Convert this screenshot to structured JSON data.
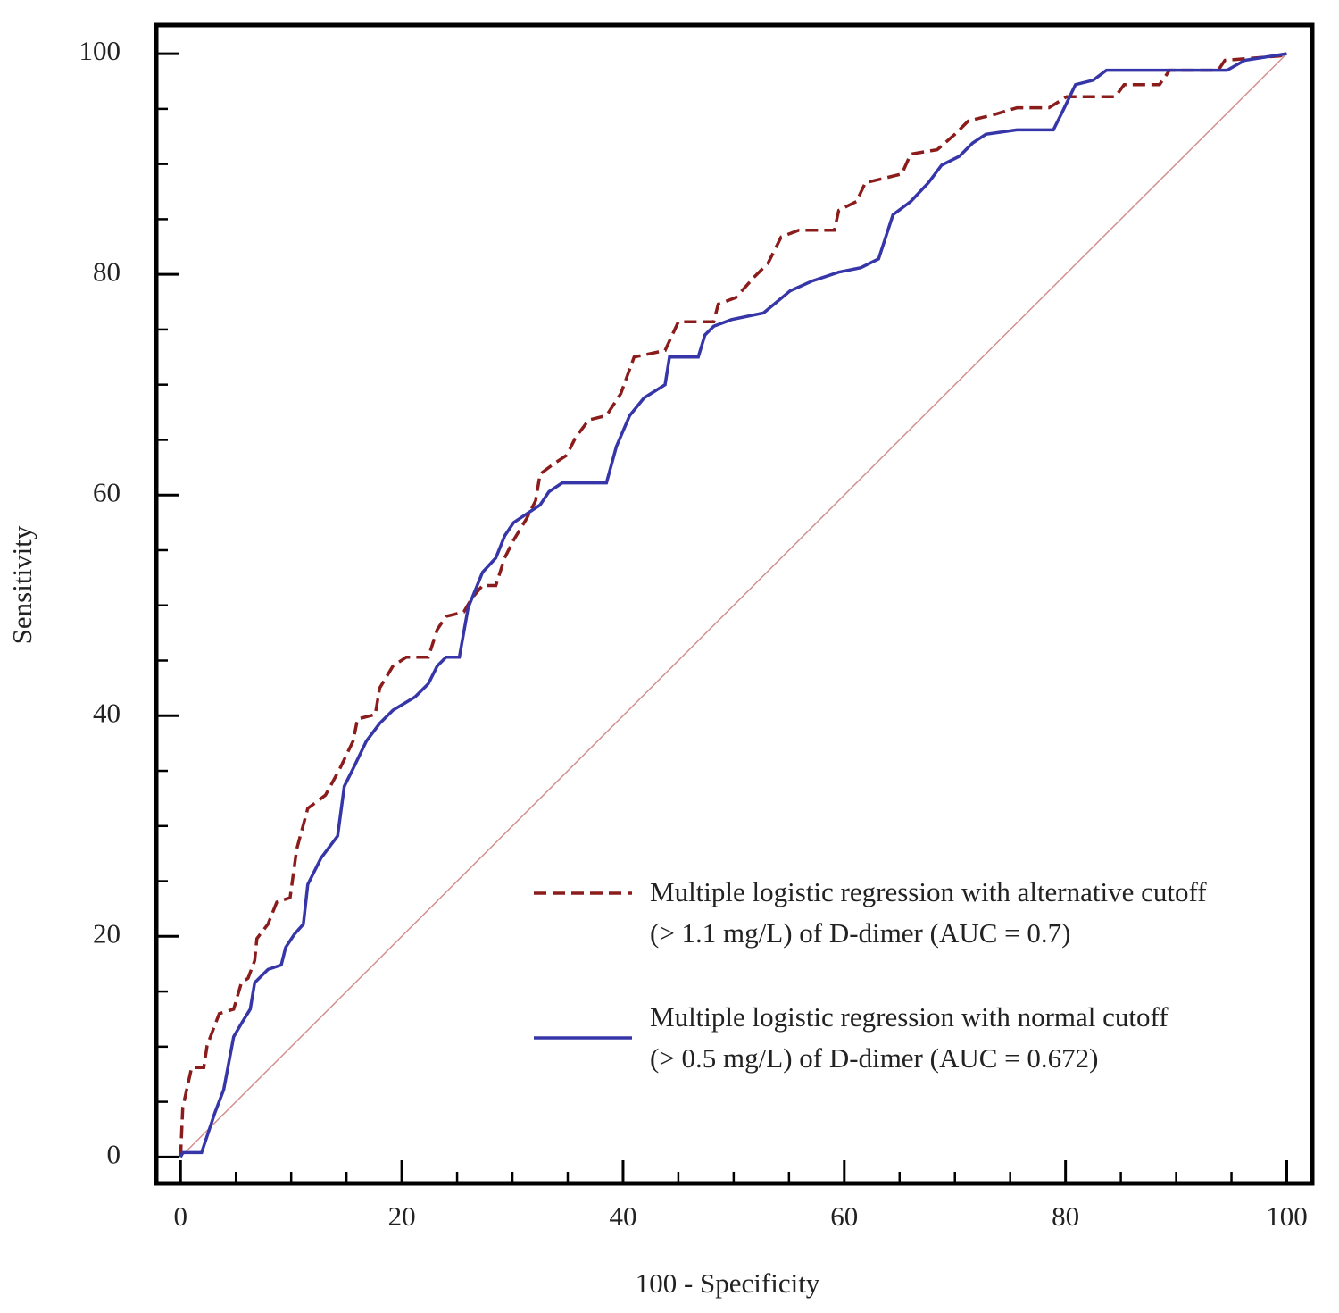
{
  "chart_data": {
    "type": "line",
    "xlabel": "100 - Specificity",
    "ylabel": "Sensitivity",
    "xlim": [
      -2.2,
      102.3
    ],
    "ylim": [
      -2.4,
      102.6
    ],
    "xticks": [
      0,
      20,
      40,
      60,
      80,
      100
    ],
    "yticks": [
      0,
      20,
      40,
      60,
      80,
      100
    ],
    "xticks_minor": [
      5,
      10,
      15,
      25,
      30,
      35,
      45,
      50,
      55,
      65,
      70,
      75,
      85,
      90,
      95
    ],
    "yticks_minor": [
      5,
      10,
      15,
      25,
      30,
      35,
      45,
      50,
      55,
      65,
      70,
      75,
      85,
      90,
      95
    ],
    "legend": "lower right",
    "diagonal": {
      "x": [
        0,
        100
      ],
      "y": [
        0,
        100
      ],
      "color": "#d49090"
    },
    "series": [
      {
        "name": [
          "Multiple logistic regression with alternative cutoff",
          "(> 1.1 mg/L) of D-dimer  (AUC = 0.7)"
        ],
        "color": "#8b1c1c",
        "dash": true,
        "x": [
          0,
          0.2,
          1.0,
          2.1,
          2.4,
          3.5,
          4.8,
          5.5,
          6.1,
          6.7,
          6.9,
          7.9,
          8.7,
          9.9,
          10.5,
          11.5,
          13.1,
          14.4,
          15.6,
          16.0,
          17.6,
          18.0,
          19.2,
          20.4,
          22.4,
          23.2,
          24.0,
          25.6,
          26.3,
          27.3,
          28.5,
          29.3,
          30.1,
          31.3,
          32.1,
          32.5,
          33.7,
          34.9,
          35.7,
          36.9,
          38.5,
          39.8,
          41.0,
          43.8,
          45.0,
          48.2,
          48.6,
          50.2,
          51.9,
          53.1,
          54.3,
          55.9,
          59.1,
          59.5,
          61.1,
          61.9,
          65.2,
          66.0,
          68.4,
          70.0,
          71.2,
          73.6,
          75.6,
          78.5,
          80.1,
          84.5,
          85.3,
          88.5,
          89.4,
          93.8,
          94.4,
          99.4,
          100
        ],
        "values": [
          0,
          4.5,
          8.1,
          8.1,
          10.1,
          13.0,
          13.4,
          15.8,
          16.2,
          17.8,
          19.8,
          21.1,
          23.1,
          23.5,
          27.9,
          31.6,
          32.8,
          35.2,
          37.7,
          39.7,
          40.1,
          42.5,
          44.5,
          45.3,
          45.3,
          47.8,
          49.0,
          49.4,
          50.6,
          51.8,
          51.8,
          54.3,
          55.9,
          57.9,
          59.5,
          61.9,
          62.8,
          63.6,
          65.2,
          66.8,
          67.2,
          69.2,
          72.5,
          73.1,
          75.7,
          75.7,
          77.3,
          77.9,
          79.8,
          81.0,
          83.4,
          84.0,
          84.0,
          85.8,
          86.6,
          88.3,
          89.1,
          90.9,
          91.3,
          92.7,
          93.9,
          94.5,
          95.1,
          95.1,
          96.1,
          96.1,
          97.2,
          97.2,
          98.5,
          98.5,
          99.4,
          99.8,
          100
        ]
      },
      {
        "name": [
          "Multiple logistic regression with normal cutoff",
          "(> 0.5 mg/L) of D-dimer (AUC = 0.672)"
        ],
        "color": "#3636a8",
        "dash": false,
        "x": [
          0,
          0.2,
          1.9,
          3.1,
          3.9,
          4.8,
          5.5,
          6.3,
          6.7,
          7.9,
          9.1,
          9.5,
          10.3,
          11.1,
          11.5,
          12.7,
          14.2,
          14.8,
          15.6,
          16.8,
          18.0,
          19.2,
          21.2,
          22.4,
          23.2,
          24.0,
          25.2,
          26.0,
          27.3,
          28.5,
          29.3,
          30.1,
          32.5,
          33.3,
          34.5,
          38.5,
          39.4,
          40.6,
          41.9,
          43.8,
          44.2,
          46.8,
          47.4,
          48.2,
          49.8,
          52.7,
          55.1,
          57.1,
          59.5,
          61.5,
          63.1,
          64.4,
          66.0,
          67.6,
          68.8,
          70.4,
          71.6,
          72.8,
          75.6,
          78.9,
          79.7,
          80.9,
          82.5,
          83.7,
          94.6,
          96.2,
          100
        ],
        "values": [
          0,
          0.4,
          0.4,
          4.0,
          6.1,
          10.9,
          12.1,
          13.4,
          15.8,
          17.0,
          17.4,
          19.0,
          20.2,
          21.1,
          24.7,
          27.1,
          29.1,
          33.6,
          35.2,
          37.7,
          39.3,
          40.5,
          41.7,
          42.9,
          44.5,
          45.3,
          45.3,
          49.8,
          53.0,
          54.3,
          56.3,
          57.5,
          59.1,
          60.3,
          61.1,
          61.1,
          64.4,
          67.2,
          68.8,
          70.0,
          72.5,
          72.5,
          74.5,
          75.3,
          75.9,
          76.5,
          78.5,
          79.4,
          80.2,
          80.6,
          81.4,
          85.4,
          86.6,
          88.3,
          89.9,
          90.7,
          91.9,
          92.7,
          93.1,
          93.1,
          94.7,
          97.2,
          97.6,
          98.5,
          98.5,
          99.4,
          100
        ]
      }
    ]
  }
}
